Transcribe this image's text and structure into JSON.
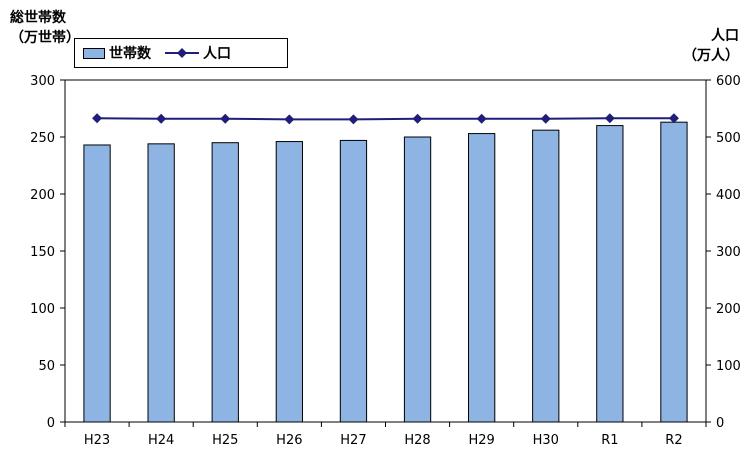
{
  "chart_data": {
    "type": "bar+line",
    "title": "",
    "categories": [
      "H23",
      "H24",
      "H25",
      "H26",
      "H27",
      "H28",
      "H29",
      "H30",
      "R1",
      "R2"
    ],
    "series": [
      {
        "name": "世帯数",
        "type": "bar",
        "axis": "left",
        "color": "#8DB4E2",
        "values": [
          243,
          244,
          245,
          246,
          247,
          250,
          253,
          256,
          260,
          263
        ]
      },
      {
        "name": "人口",
        "type": "line",
        "axis": "right",
        "color": "#1F1F7A",
        "marker": "diamond",
        "values": [
          533,
          532,
          532,
          531,
          531,
          532,
          532,
          532,
          533,
          533
        ]
      }
    ],
    "y_left": {
      "label_line1": "総世帯数",
      "label_line2": "（万世帯）",
      "ylim": [
        0,
        300
      ],
      "ticks": [
        "0",
        "50",
        "100",
        "150",
        "200",
        "250",
        "300"
      ]
    },
    "y_right": {
      "label_line1": "人口",
      "label_line2": "（万人）",
      "ylim": [
        0,
        600
      ],
      "ticks": [
        "0",
        "100",
        "200",
        "300",
        "400",
        "500",
        "600"
      ]
    },
    "legend": {
      "position": "top-left",
      "bar_label": "世帯数",
      "line_label": "人口"
    },
    "grid": false
  }
}
